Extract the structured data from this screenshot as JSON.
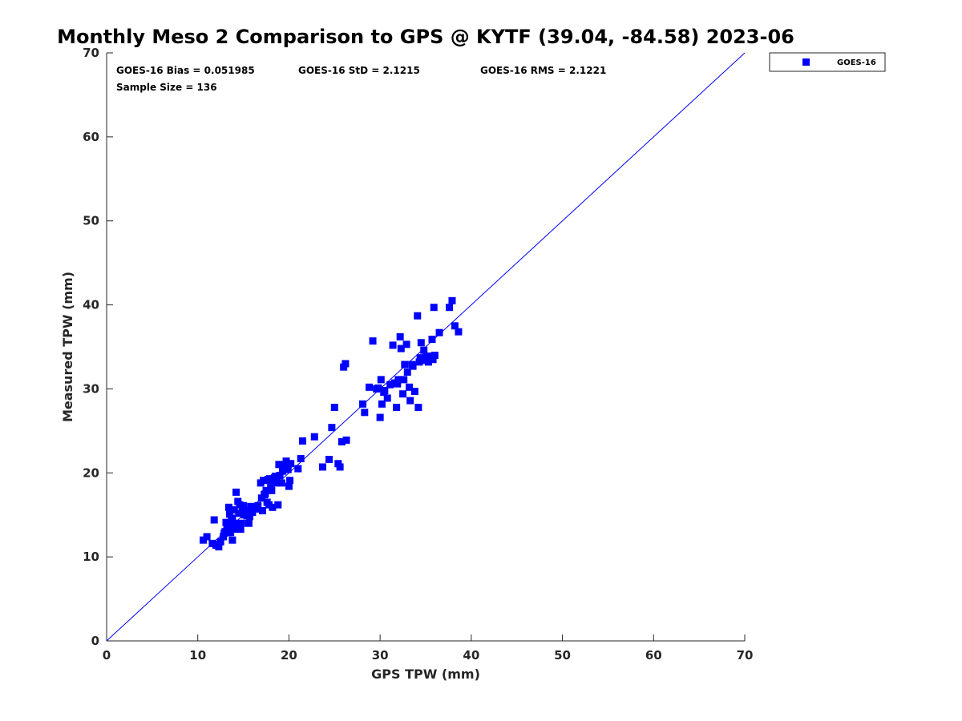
{
  "chart_data": {
    "type": "scatter",
    "title": "Monthly Meso 2 Comparison to GPS @ KYTF (39.04, -84.58) 2023-06",
    "xlabel": "GPS TPW (mm)",
    "ylabel": "Measured TPW (mm)",
    "xlim": [
      0,
      70
    ],
    "ylim": [
      0,
      70
    ],
    "xticks": [
      "0",
      "10",
      "20",
      "30",
      "40",
      "50",
      "60",
      "70"
    ],
    "yticks": [
      "0",
      "10",
      "20",
      "30",
      "40",
      "50",
      "60",
      "70"
    ],
    "grid": false,
    "legend_position": "outside-top-right",
    "stats": {
      "bias": "GOES-16 Bias = 0.051985",
      "std": "GOES-16 StD = 2.1215",
      "rms": "GOES-16 RMS = 2.1221",
      "sample": "Sample Size = 136"
    },
    "reference_line": {
      "name": "1:1 line",
      "x": [
        0,
        70
      ],
      "y": [
        0,
        70
      ],
      "color": "#0000ff"
    },
    "series": [
      {
        "name": "GOES-16",
        "marker": "square",
        "color": "#0000ff",
        "points": [
          [
            10.6,
            12.0
          ],
          [
            11.0,
            12.4
          ],
          [
            11.6,
            11.6
          ],
          [
            11.8,
            14.4
          ],
          [
            12.0,
            11.4
          ],
          [
            12.3,
            11.2
          ],
          [
            12.5,
            11.8
          ],
          [
            12.8,
            12.4
          ],
          [
            13.0,
            13.0
          ],
          [
            13.1,
            14.1
          ],
          [
            13.3,
            12.9
          ],
          [
            13.4,
            15.9
          ],
          [
            13.5,
            15.1
          ],
          [
            13.6,
            13.8
          ],
          [
            13.7,
            14.5
          ],
          [
            13.8,
            12.0
          ],
          [
            13.9,
            13.3
          ],
          [
            14.0,
            15.6
          ],
          [
            14.2,
            17.7
          ],
          [
            14.3,
            13.6
          ],
          [
            14.4,
            16.6
          ],
          [
            14.5,
            15.2
          ],
          [
            14.6,
            16.2
          ],
          [
            14.7,
            13.3
          ],
          [
            14.8,
            14.0
          ],
          [
            14.9,
            15.8
          ],
          [
            15.0,
            16.1
          ],
          [
            15.3,
            15.5
          ],
          [
            15.6,
            14.0
          ],
          [
            15.7,
            14.8
          ],
          [
            15.8,
            16.0
          ],
          [
            16.0,
            15.3
          ],
          [
            16.3,
            15.9
          ],
          [
            16.5,
            15.7
          ],
          [
            16.9,
            18.8
          ],
          [
            17.0,
            17.0
          ],
          [
            17.1,
            15.5
          ],
          [
            17.2,
            19.1
          ],
          [
            17.4,
            17.5
          ],
          [
            17.5,
            17.9
          ],
          [
            17.6,
            16.5
          ],
          [
            17.8,
            16.2
          ],
          [
            17.9,
            19.3
          ],
          [
            18.0,
            18.5
          ],
          [
            18.1,
            17.9
          ],
          [
            18.2,
            15.9
          ],
          [
            18.3,
            19.1
          ],
          [
            18.4,
            19.4
          ],
          [
            18.6,
            18.8
          ],
          [
            18.8,
            16.2
          ],
          [
            18.9,
            21.0
          ],
          [
            19.0,
            19.7
          ],
          [
            19.2,
            18.8
          ],
          [
            19.3,
            20.2
          ],
          [
            19.6,
            21.0
          ],
          [
            19.7,
            21.4
          ],
          [
            20.0,
            18.4
          ],
          [
            20.1,
            19.1
          ],
          [
            20.2,
            21.1
          ],
          [
            21.0,
            20.5
          ],
          [
            21.3,
            21.7
          ],
          [
            21.5,
            23.8
          ],
          [
            22.8,
            24.3
          ],
          [
            23.7,
            20.7
          ],
          [
            24.4,
            21.6
          ],
          [
            24.7,
            25.4
          ],
          [
            25.0,
            27.8
          ],
          [
            25.4,
            21.1
          ],
          [
            25.6,
            20.7
          ],
          [
            25.8,
            23.7
          ],
          [
            26.0,
            32.6
          ],
          [
            26.2,
            33.0
          ],
          [
            26.3,
            23.9
          ],
          [
            28.1,
            28.2
          ],
          [
            28.3,
            27.2
          ],
          [
            28.8,
            30.2
          ],
          [
            29.2,
            35.7
          ],
          [
            29.6,
            30.0
          ],
          [
            30.0,
            26.6
          ],
          [
            30.1,
            31.1
          ],
          [
            30.2,
            28.2
          ],
          [
            30.5,
            29.8
          ],
          [
            30.8,
            28.9
          ],
          [
            31.1,
            30.5
          ],
          [
            31.4,
            35.2
          ],
          [
            31.6,
            30.7
          ],
          [
            31.8,
            27.8
          ],
          [
            32.0,
            31.1
          ],
          [
            32.2,
            36.2
          ],
          [
            32.3,
            34.8
          ],
          [
            32.5,
            29.4
          ],
          [
            32.6,
            31.1
          ],
          [
            32.7,
            32.9
          ],
          [
            32.9,
            35.3
          ],
          [
            33.0,
            32.0
          ],
          [
            33.2,
            30.2
          ],
          [
            33.3,
            28.6
          ],
          [
            33.6,
            32.7
          ],
          [
            33.8,
            29.7
          ],
          [
            34.1,
            38.7
          ],
          [
            34.2,
            27.8
          ],
          [
            34.3,
            33.2
          ],
          [
            34.4,
            33.7
          ],
          [
            34.5,
            35.5
          ],
          [
            34.8,
            34.6
          ],
          [
            35.3,
            33.2
          ],
          [
            35.5,
            33.9
          ],
          [
            35.7,
            35.9
          ],
          [
            35.8,
            33.5
          ],
          [
            35.9,
            39.7
          ],
          [
            36.0,
            34.0
          ],
          [
            36.5,
            36.7
          ],
          [
            37.6,
            39.7
          ],
          [
            37.9,
            40.5
          ],
          [
            38.2,
            37.5
          ],
          [
            38.6,
            36.8
          ],
          [
            13.2,
            13.4
          ],
          [
            14.1,
            14.0
          ],
          [
            15.1,
            15.0
          ],
          [
            16.1,
            15.9
          ],
          [
            12.9,
            12.8
          ],
          [
            13.6,
            12.9
          ],
          [
            14.4,
            13.3
          ],
          [
            17.3,
            17.4
          ],
          [
            18.7,
            18.9
          ],
          [
            19.9,
            20.4
          ],
          [
            16.6,
            16.1
          ],
          [
            15.4,
            14.9
          ],
          [
            17.7,
            19.2
          ],
          [
            18.5,
            19.6
          ],
          [
            12.2,
            11.5
          ],
          [
            13.8,
            14.6
          ],
          [
            31.9,
            30.6
          ],
          [
            33.5,
            32.9
          ],
          [
            30.4,
            29.6
          ],
          [
            29.8,
            30.1
          ],
          [
            34.6,
            33.4
          ],
          [
            35.1,
            33.8
          ]
        ]
      }
    ]
  }
}
